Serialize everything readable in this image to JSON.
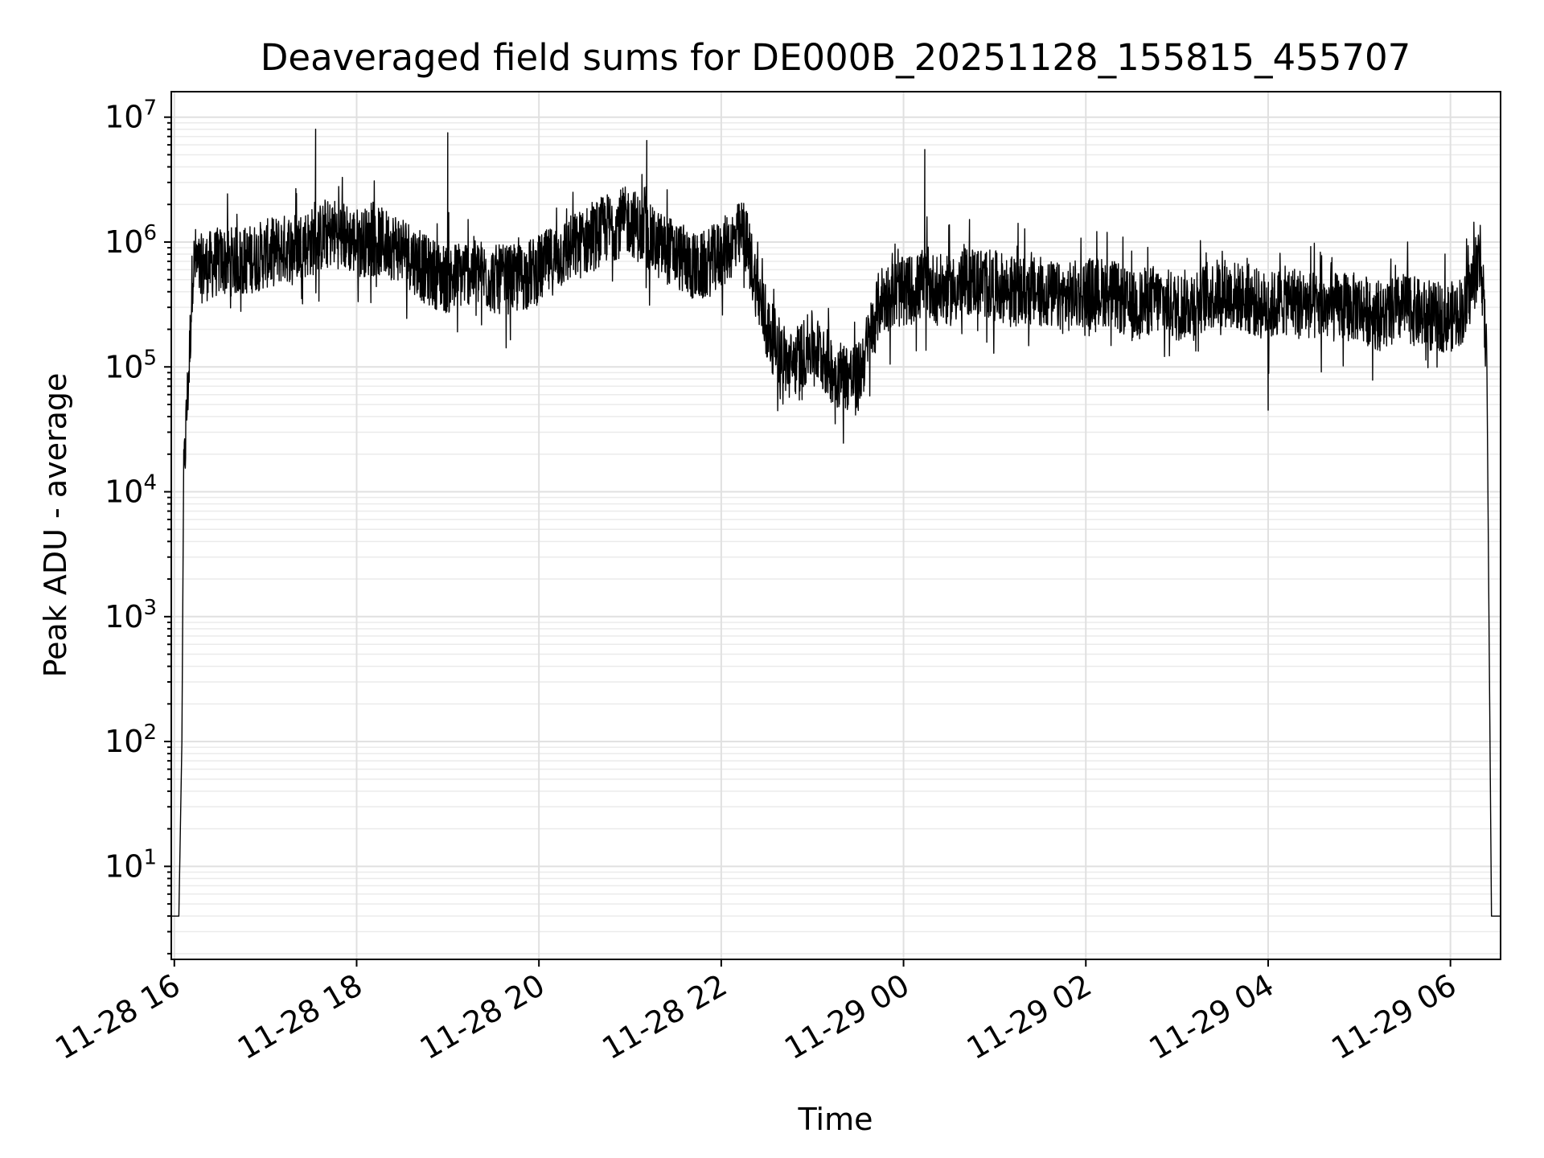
{
  "chart_data": {
    "type": "line",
    "title": "Deaveraged field sums for DE000B_20251128_155815_455707",
    "xlabel": "Time",
    "ylabel": "Peak ADU - average",
    "yscale": "log",
    "ylim": [
      1.8,
      16000000
    ],
    "xlim": [
      "2025-11-28 15:58",
      "2025-11-29 06:33"
    ],
    "grid": "on (major and minor)",
    "x_ticks": [
      "11-28 16",
      "11-28 18",
      "11-28 20",
      "11-28 22",
      "11-29 00",
      "11-29 02",
      "11-29 04",
      "11-29 06"
    ],
    "x_tick_values": [
      "2025-11-28 16:00",
      "2025-11-28 18:00",
      "2025-11-28 20:00",
      "2025-11-28 22:00",
      "2025-11-29 00:00",
      "2025-11-29 02:00",
      "2025-11-29 04:00",
      "2025-11-29 06:00"
    ],
    "y_ticks": [
      {
        "base": "10",
        "exp": "1",
        "value": 10
      },
      {
        "base": "10",
        "exp": "2",
        "value": 100
      },
      {
        "base": "10",
        "exp": "3",
        "value": 1000
      },
      {
        "base": "10",
        "exp": "4",
        "value": 10000
      },
      {
        "base": "10",
        "exp": "5",
        "value": 100000
      },
      {
        "base": "10",
        "exp": "6",
        "value": 1000000
      },
      {
        "base": "10",
        "exp": "7",
        "value": 10000000
      }
    ],
    "series": [
      {
        "color": "#000000",
        "x": [
          "2025-11-28 15:58",
          "2025-11-28 16:03",
          "2025-11-28 16:05",
          "2025-11-28 16:06",
          "2025-11-28 16:08",
          "2025-11-28 16:10",
          "2025-11-28 16:12",
          "2025-11-28 16:14",
          "2025-11-28 16:16",
          "2025-11-28 16:30",
          "2025-11-28 16:45",
          "2025-11-28 17:00",
          "2025-11-28 17:15",
          "2025-11-28 17:30",
          "2025-11-28 17:45",
          "2025-11-28 18:00",
          "2025-11-28 18:15",
          "2025-11-28 18:30",
          "2025-11-28 18:45",
          "2025-11-28 19:00",
          "2025-11-28 19:15",
          "2025-11-28 19:30",
          "2025-11-28 19:45",
          "2025-11-28 20:00",
          "2025-11-28 20:15",
          "2025-11-28 20:30",
          "2025-11-28 20:45",
          "2025-11-28 21:00",
          "2025-11-28 21:15",
          "2025-11-28 21:30",
          "2025-11-28 21:45",
          "2025-11-28 22:00",
          "2025-11-28 22:15",
          "2025-11-28 22:30",
          "2025-11-28 22:45",
          "2025-11-28 23:00",
          "2025-11-28 23:15",
          "2025-11-28 23:30",
          "2025-11-28 23:45",
          "2025-11-29 00:00",
          "2025-11-29 00:15",
          "2025-11-29 00:30",
          "2025-11-29 00:45",
          "2025-11-29 01:00",
          "2025-11-29 01:15",
          "2025-11-29 01:30",
          "2025-11-29 01:45",
          "2025-11-29 02:00",
          "2025-11-29 02:15",
          "2025-11-29 02:30",
          "2025-11-29 02:45",
          "2025-11-29 03:00",
          "2025-11-29 03:15",
          "2025-11-29 03:30",
          "2025-11-29 03:45",
          "2025-11-29 04:00",
          "2025-11-29 04:15",
          "2025-11-29 04:30",
          "2025-11-29 04:45",
          "2025-11-29 05:00",
          "2025-11-29 05:15",
          "2025-11-29 05:30",
          "2025-11-29 05:45",
          "2025-11-29 06:00",
          "2025-11-29 06:10",
          "2025-11-29 06:15",
          "2025-11-29 06:20",
          "2025-11-29 06:24",
          "2025-11-29 06:27",
          "2025-11-29 06:33"
        ],
        "y": [
          4,
          4,
          100,
          10000,
          40000,
          120000,
          600000,
          700000,
          600000,
          700000,
          700000,
          800000,
          900000,
          1000000,
          1200000,
          1000000,
          1000000,
          900000,
          600000,
          500000,
          600000,
          500000,
          500000,
          600000,
          800000,
          1000000,
          1300000,
          1500000,
          1000000,
          800000,
          600000,
          800000,
          1200000,
          200000,
          100000,
          150000,
          90000,
          80000,
          350000,
          400000,
          450000,
          400000,
          500000,
          450000,
          400000,
          400000,
          350000,
          400000,
          400000,
          300000,
          350000,
          300000,
          350000,
          400000,
          350000,
          300000,
          350000,
          300000,
          300000,
          300000,
          250000,
          300000,
          250000,
          250000,
          300000,
          500000,
          800000,
          100000,
          4,
          4
        ],
        "spikes": [
          {
            "x": "2025-11-28 17:33",
            "y": 8000000
          },
          {
            "x": "2025-11-28 19:00",
            "y": 7500000
          },
          {
            "x": "2025-11-28 21:11",
            "y": 6500000
          },
          {
            "x": "2025-11-28 23:15",
            "y": 35000
          },
          {
            "x": "2025-11-29 00:14",
            "y": 5500000
          },
          {
            "x": "2025-11-29 04:00",
            "y": 45000
          }
        ]
      }
    ]
  }
}
